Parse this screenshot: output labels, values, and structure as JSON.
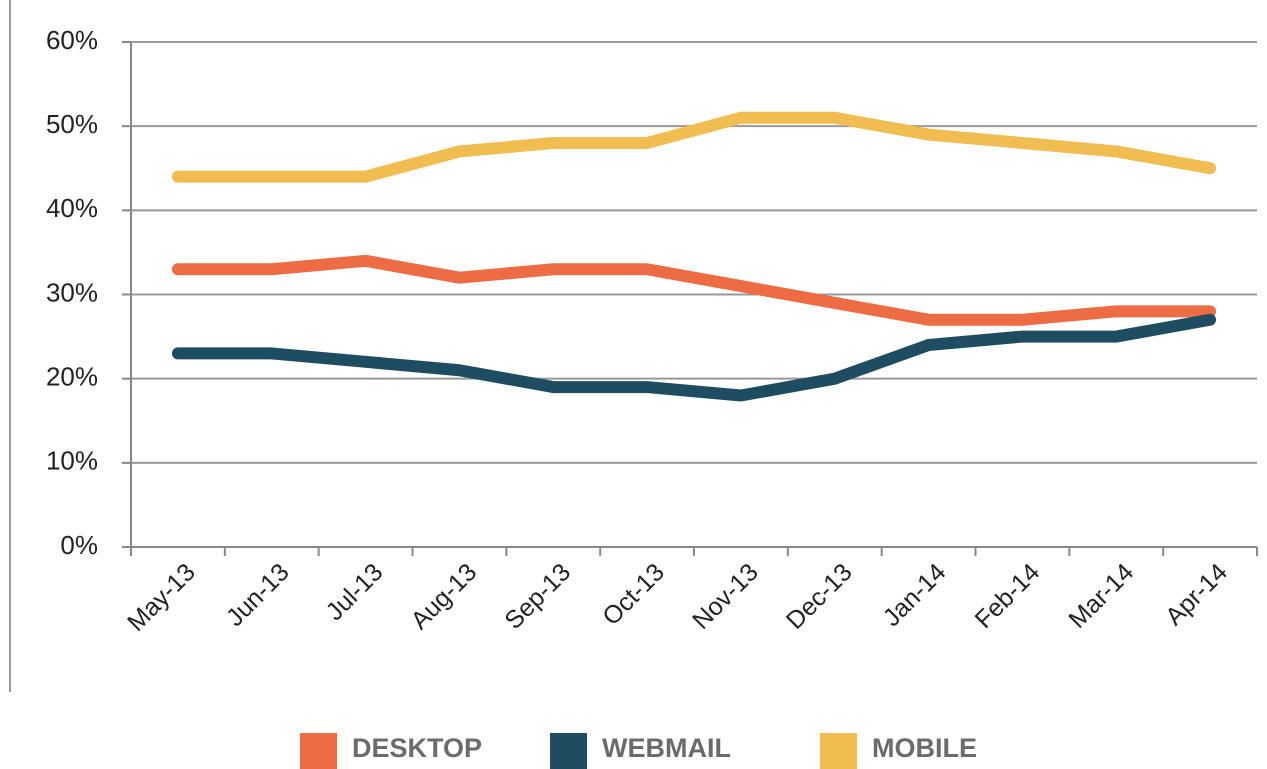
{
  "chart_data": {
    "type": "line",
    "categories": [
      "May-13",
      "Jun-13",
      "Jul-13",
      "Aug-13",
      "Sep-13",
      "Oct-13",
      "Nov-13",
      "Dec-13",
      "Jan-14",
      "Feb-14",
      "Mar-14",
      "Apr-14"
    ],
    "series": [
      {
        "name": "DESKTOP",
        "color": "#ee6c44",
        "values": [
          33,
          33,
          34,
          32,
          33,
          33,
          31,
          29,
          27,
          27,
          28,
          28
        ]
      },
      {
        "name": "WEBMAIL",
        "color": "#1e4d61",
        "values": [
          23,
          23,
          22,
          21,
          19,
          19,
          18,
          20,
          24,
          25,
          25,
          27
        ]
      },
      {
        "name": "MOBILE",
        "color": "#f2bd50",
        "values": [
          44,
          44,
          44,
          47,
          48,
          48,
          51,
          51,
          49,
          48,
          47,
          45
        ]
      }
    ],
    "ylim": [
      0,
      60
    ],
    "yticks": [
      {
        "value": 0,
        "label": "0%"
      },
      {
        "value": 10,
        "label": "10%"
      },
      {
        "value": 20,
        "label": "20%"
      },
      {
        "value": 30,
        "label": "30%"
      },
      {
        "value": 40,
        "label": "40%"
      },
      {
        "value": 50,
        "label": "50%"
      },
      {
        "value": 60,
        "label": "60%"
      }
    ],
    "grid": true,
    "legend": "bottom"
  }
}
